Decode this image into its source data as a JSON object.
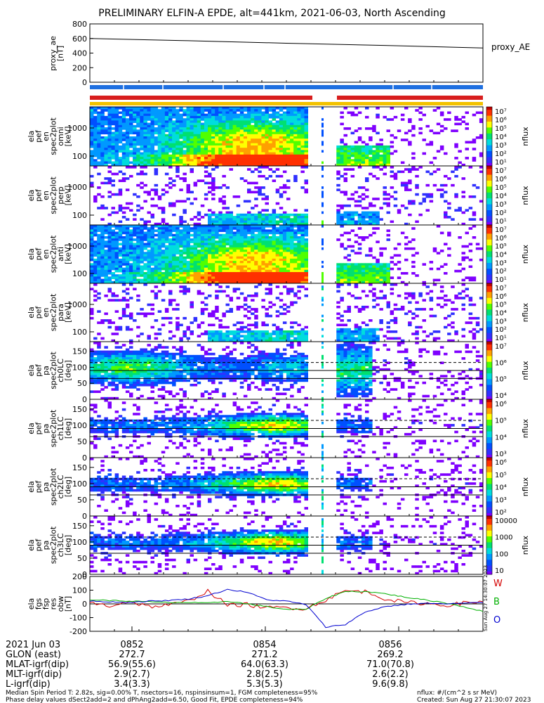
{
  "title": "PRELIMINARY ELFIN-A EPDE, alt=441km, 2021-06-03, North Ascending",
  "colors": {
    "bar_blue": "#1e6fe0",
    "bar_red": "#d81e1e",
    "bar_yellow": "#f2c200",
    "trace_W": "#d40000",
    "trace_B": "#00b000",
    "trace_O": "#0000d0"
  },
  "panels": {
    "proxy_ae": {
      "ylabel": [
        "proxy_ae",
        "[nT]"
      ],
      "legend": "proxy_AE",
      "yticks": [
        "800",
        "600",
        "400",
        "200",
        "0"
      ]
    },
    "spectrograms": [
      {
        "ylabel": [
          "ela",
          "pef",
          "en",
          "spec2plot",
          "omni",
          "[keV]"
        ],
        "yticks": [
          "1000",
          "100"
        ],
        "zticks": [
          "10⁷",
          "10⁶",
          "10⁵",
          "10⁴",
          "10³",
          "10²",
          "10¹"
        ],
        "zlabel": "nflux"
      },
      {
        "ylabel": [
          "ela",
          "pef",
          "en",
          "spec2plot",
          "perp",
          "[keV]"
        ],
        "yticks": [
          "1000",
          "100"
        ],
        "zticks": [
          "10⁷",
          "10⁶",
          "10⁵",
          "10⁴",
          "10³",
          "10²",
          "10¹"
        ],
        "zlabel": "nflux"
      },
      {
        "ylabel": [
          "ela",
          "pef",
          "en",
          "spec2plot",
          "anti",
          "[keV]"
        ],
        "yticks": [
          "1000",
          "100"
        ],
        "zticks": [
          "10⁷",
          "10⁶",
          "10⁵",
          "10⁴",
          "10³",
          "10²",
          "10¹"
        ],
        "zlabel": "nflux"
      },
      {
        "ylabel": [
          "ela",
          "pef",
          "en",
          "spec2plot",
          "para",
          "[keV]"
        ],
        "yticks": [
          "1000",
          "100"
        ],
        "zticks": [
          "10⁷",
          "10⁶",
          "10⁵",
          "10⁴",
          "10³",
          "10²",
          "10¹"
        ],
        "zlabel": "nflux"
      }
    ],
    "pitch_angle": [
      {
        "ylabel": [
          "ela",
          "pef",
          "pa",
          "spec2plot",
          "ch0LC",
          "[deg]"
        ],
        "yticks": [
          "150",
          "100",
          "50",
          "0"
        ],
        "zticks": [
          "10⁷",
          "10⁶",
          "10⁵",
          "10⁴"
        ],
        "zlabel": "nflux"
      },
      {
        "ylabel": [
          "ela",
          "pef",
          "pa",
          "spec2plot",
          "ch1LC",
          "[deg]"
        ],
        "yticks": [
          "150",
          "100",
          "50",
          "0"
        ],
        "zticks": [
          "10⁶",
          "10⁵",
          "10⁴",
          "10³"
        ],
        "zlabel": "nflux"
      },
      {
        "ylabel": [
          "ela",
          "pef",
          "pa",
          "spec2plot",
          "ch2LC",
          "[deg]"
        ],
        "yticks": [
          "150",
          "100",
          "50",
          "0"
        ],
        "zticks": [
          "10⁶",
          "10⁵",
          "10⁴",
          "10³",
          "10²"
        ],
        "zlabel": "nflux"
      },
      {
        "ylabel": [
          "ela",
          "pef",
          "pa",
          "spec2plot",
          "ch3LC",
          "[deg]"
        ],
        "yticks": [
          "150",
          "100",
          "50",
          "0"
        ],
        "zticks": [
          "10000",
          "1000",
          "100",
          "10"
        ],
        "zlabel": "nflux"
      }
    ],
    "fgs": {
      "ylabel": [
        "ela",
        "fgs",
        "fsp",
        "res",
        "obw",
        "[nT]"
      ],
      "yticks": [
        "200",
        "100",
        "0",
        "-100",
        "-200"
      ],
      "legend": [
        "W",
        "B",
        "O"
      ],
      "stamp": "Sun Aug 27 14:30:07 2023"
    }
  },
  "footer": {
    "rows": [
      {
        "label": "2021 Jun 03",
        "values": [
          "0852",
          "0854",
          "0856"
        ]
      },
      {
        "label": "GLON (east)",
        "values": [
          "272.7",
          "271.2",
          "269.2"
        ]
      },
      {
        "label": "MLAT-igrf(dip)",
        "values": [
          "56.9(55.6)",
          "64.0(63.3)",
          "71.0(70.8)"
        ]
      },
      {
        "label": "MLT-igrf(dip)",
        "values": [
          "2.9(2.7)",
          "2.8(2.5)",
          "2.6(2.2)"
        ]
      },
      {
        "label": "L-igrf(dip)",
        "values": [
          "3.4(3.3)",
          "5.3(5.3)",
          "9.6(9.8)"
        ]
      }
    ],
    "note1": "Median Spin Period T: 2.82s, sig=0.00% T, nsectors=16, nspinsinsum=1, FGM completeness=95%",
    "note2": "Phase delay values dSect2add=2 and dPhAng2add=6.50, Good Fit, EPDE completeness=94%",
    "units": "nflux: #/(cm^2 s sr MeV)",
    "created": "Created: Sun Aug 27 21:30:07 2023"
  },
  "chart_data": {
    "type": "line",
    "title": "PRELIMINARY ELFIN-A EPDE, alt=441km, 2021-06-03, North Ascending",
    "x_ticks": [
      "0852",
      "0854",
      "0856"
    ],
    "proxy_ae": {
      "name": "proxy_AE",
      "ylabel": "proxy_ae [nT]",
      "ylim": [
        0,
        800
      ],
      "x": [
        0,
        0.25,
        0.5,
        0.75,
        1.0
      ],
      "values": [
        600,
        570,
        535,
        505,
        470
      ]
    },
    "fgs": {
      "ylabel": "[nT]",
      "ylim": [
        -200,
        200
      ],
      "x": [
        0,
        0.05,
        0.1,
        0.15,
        0.2,
        0.25,
        0.3,
        0.35,
        0.4,
        0.45,
        0.5,
        0.55,
        0.6,
        0.65,
        0.7,
        0.75,
        0.8,
        0.85,
        0.9,
        0.95,
        1.0
      ],
      "series": [
        {
          "name": "W",
          "values": [
            10,
            -15,
            20,
            -20,
            -10,
            20,
            95,
            -10,
            -5,
            -30,
            -25,
            -35,
            30,
            95,
            90,
            40,
            10,
            5,
            -10,
            5,
            15
          ]
        },
        {
          "name": "B",
          "values": [
            30,
            25,
            20,
            15,
            10,
            10,
            5,
            20,
            0,
            -20,
            -40,
            -40,
            40,
            90,
            90,
            75,
            50,
            30,
            10,
            -20,
            -55
          ]
        },
        {
          "name": "O",
          "values": [
            20,
            15,
            10,
            20,
            25,
            35,
            60,
            105,
            85,
            30,
            20,
            -5,
            -170,
            -150,
            -60,
            -20,
            -5,
            5,
            0,
            5,
            10
          ]
        }
      ]
    }
  }
}
